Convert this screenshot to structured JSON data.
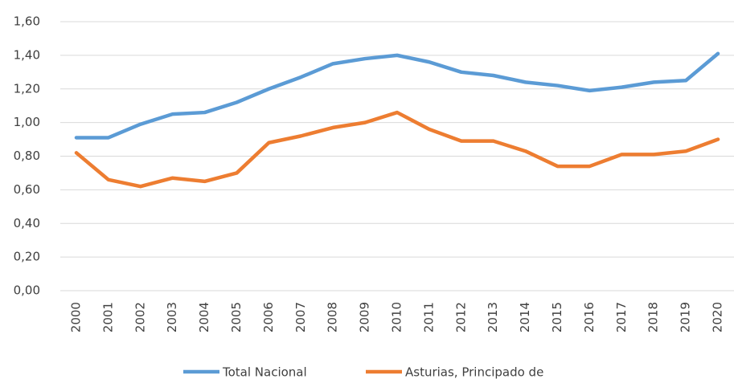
{
  "chart_data": {
    "type": "line",
    "categories": [
      "2000",
      "2001",
      "2002",
      "2003",
      "2004",
      "2005",
      "2006",
      "2007",
      "2008",
      "2009",
      "2010",
      "2011",
      "2012",
      "2013",
      "2014",
      "2015",
      "2016",
      "2017",
      "2018",
      "2019",
      "2020"
    ],
    "series": [
      {
        "name": "Total Nacional",
        "color": "#5b9bd5",
        "values": [
          0.91,
          0.91,
          0.99,
          1.05,
          1.06,
          1.12,
          1.2,
          1.27,
          1.35,
          1.38,
          1.4,
          1.36,
          1.3,
          1.28,
          1.24,
          1.22,
          1.19,
          1.21,
          1.24,
          1.25,
          1.41
        ]
      },
      {
        "name": "Asturias, Principado de",
        "color": "#ed7d31",
        "values": [
          0.82,
          0.66,
          0.62,
          0.67,
          0.65,
          0.7,
          0.88,
          0.92,
          0.97,
          1.0,
          1.06,
          0.96,
          0.89,
          0.89,
          0.83,
          0.74,
          0.74,
          0.81,
          0.81,
          0.83,
          0.9
        ]
      }
    ],
    "ylim": [
      0,
      1.6
    ],
    "yticks": [
      {
        "value": 0,
        "label": "0,00"
      },
      {
        "value": 0.2,
        "label": "0,20"
      },
      {
        "value": 0.4,
        "label": "0,40"
      },
      {
        "value": 0.6,
        "label": "0,60"
      },
      {
        "value": 0.8,
        "label": "0,80"
      },
      {
        "value": 1.0,
        "label": "1,00"
      },
      {
        "value": 1.2,
        "label": "1,20"
      },
      {
        "value": 1.4,
        "label": "1,40"
      },
      {
        "value": 1.6,
        "label": "1,60"
      }
    ],
    "grid": true,
    "legend": "bottom"
  }
}
